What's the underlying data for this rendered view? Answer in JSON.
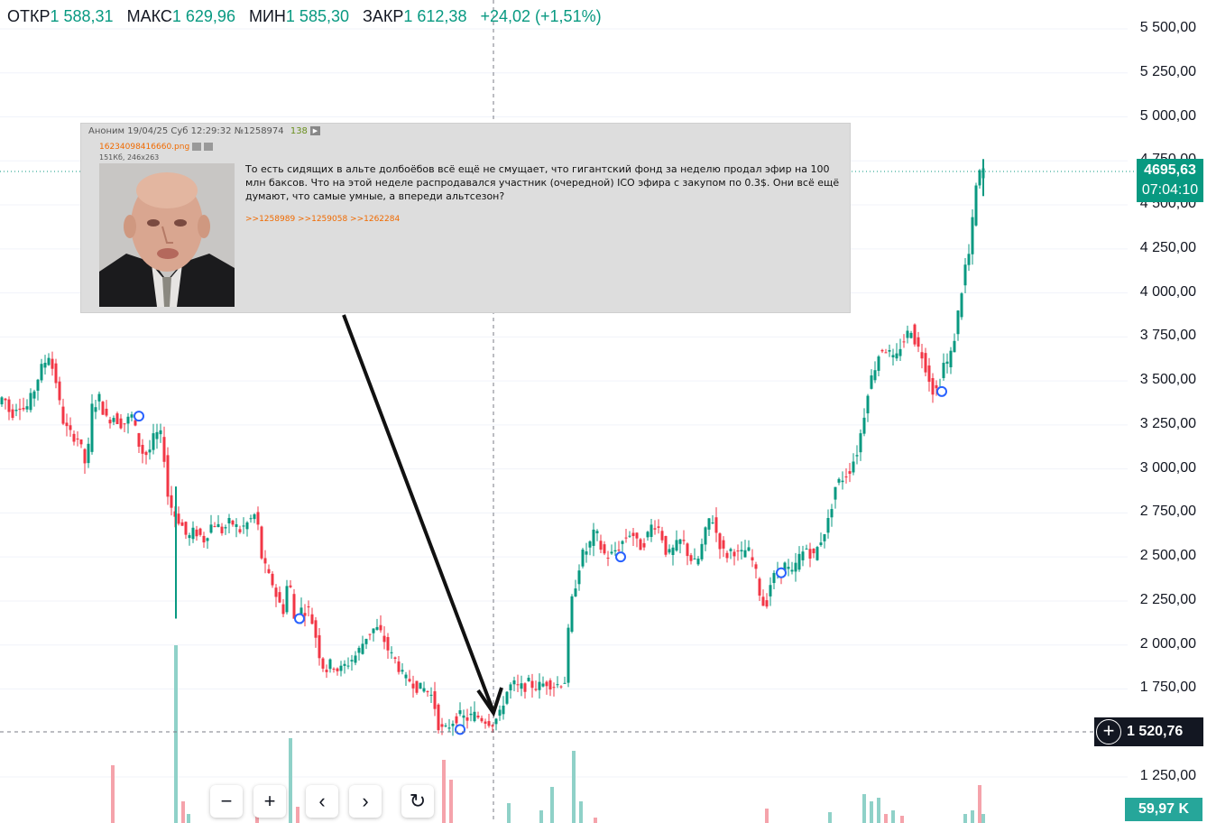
{
  "ohlc": {
    "open_label": "ОТКР",
    "open": "1 588,31",
    "high_label": "МАКС",
    "high": "1 629,96",
    "low_label": "МИН",
    "low": "1 585,30",
    "close_label": "ЗАКР",
    "close": "1 612,38",
    "change": "+24,02 (+1,51%)"
  },
  "price_axis": [
    "5 500,00",
    "5 250,00",
    "5 000,00",
    "4 750,00",
    "4 500,00",
    "4 250,00",
    "4 000,00",
    "3 750,00",
    "3 500,00",
    "3 250,00",
    "3 000,00",
    "2 750,00",
    "2 500,00",
    "2 250,00",
    "2 000,00",
    "1 750,00",
    "1 250,00"
  ],
  "last_price": {
    "value": "4695,63",
    "countdown": "07:04:10"
  },
  "crosshair_price": "1 520,76",
  "volume_label": "59,97 K",
  "colors": {
    "up": "#089981",
    "down": "#f23645",
    "vol_up": "#8fd1c8",
    "vol_down": "#f5a3ab",
    "crosshair": "#131722"
  },
  "post": {
    "author": "Аноним",
    "datetime": "19/04/25 Суб 12:29:32",
    "number": "№1258974",
    "count": "138",
    "file_name": "16234098416660.png",
    "file_meta": "151Кб, 246x263",
    "text": "То есть сидящих в альте долбоёбов всё ещё не смущает, что гигантский фонд за неделю продал эфир на 100 млн баксов. Что на этой неделе распродавался участник (очередной) ICO эфира с закупом по 0.3$. Они всё ещё думают, что самые умные, а впереди альтсезон?",
    "replies": ">>1258989 >>1259058 >>1262284"
  },
  "toolbar": {
    "zoom_out": "−",
    "zoom_in": "+",
    "prev": "‹",
    "next": "›",
    "reset": "↻"
  },
  "icons": [
    "crosshair-plus-icon",
    "play-icon",
    "search-icon",
    "download-icon",
    "reset-icon"
  ],
  "chart_data": {
    "type": "candlestick",
    "ylim": [
      1100,
      5600
    ],
    "y_ticks": [
      1250,
      1750,
      2000,
      2250,
      2500,
      2750,
      3000,
      3250,
      3500,
      3750,
      4000,
      4250,
      4500,
      4750,
      5000,
      5250,
      5500
    ],
    "last_price": 4695.63,
    "crosshair_price": 1520.76,
    "anchors": [
      [
        0,
        3350
      ],
      [
        8,
        3420
      ],
      [
        16,
        3300
      ],
      [
        24,
        3380
      ],
      [
        32,
        3330
      ],
      [
        40,
        3420
      ],
      [
        48,
        3550
      ],
      [
        58,
        3650
      ],
      [
        66,
        3500
      ],
      [
        72,
        3300
      ],
      [
        80,
        3200
      ],
      [
        90,
        3180
      ],
      [
        100,
        3000
      ],
      [
        106,
        3350
      ],
      [
        114,
        3400
      ],
      [
        122,
        3280
      ],
      [
        130,
        3300
      ],
      [
        140,
        3250
      ],
      [
        150,
        3300
      ],
      [
        160,
        3100
      ],
      [
        168,
        3080
      ],
      [
        176,
        3200
      ],
      [
        184,
        3180
      ],
      [
        190,
        2850
      ],
      [
        196,
        2750
      ],
      [
        204,
        2700
      ],
      [
        212,
        2600
      ],
      [
        220,
        2650
      ],
      [
        230,
        2600
      ],
      [
        240,
        2700
      ],
      [
        250,
        2650
      ],
      [
        260,
        2700
      ],
      [
        270,
        2650
      ],
      [
        280,
        2700
      ],
      [
        288,
        2750
      ],
      [
        294,
        2500
      ],
      [
        300,
        2400
      ],
      [
        306,
        2350
      ],
      [
        312,
        2250
      ],
      [
        318,
        2200
      ],
      [
        324,
        2400
      ],
      [
        330,
        2150
      ],
      [
        338,
        2200
      ],
      [
        346,
        2200
      ],
      [
        352,
        2100
      ],
      [
        358,
        1950
      ],
      [
        364,
        1850
      ],
      [
        372,
        1900
      ],
      [
        380,
        1850
      ],
      [
        390,
        1900
      ],
      [
        400,
        1950
      ],
      [
        410,
        2050
      ],
      [
        420,
        2100
      ],
      [
        428,
        2050
      ],
      [
        436,
        1950
      ],
      [
        444,
        1900
      ],
      [
        452,
        1800
      ],
      [
        460,
        1800
      ],
      [
        468,
        1750
      ],
      [
        476,
        1750
      ],
      [
        484,
        1700
      ],
      [
        490,
        1550
      ],
      [
        496,
        1500
      ],
      [
        504,
        1560
      ],
      [
        512,
        1600
      ],
      [
        520,
        1580
      ],
      [
        530,
        1600
      ],
      [
        540,
        1580
      ],
      [
        550,
        1560
      ],
      [
        558,
        1600
      ],
      [
        564,
        1720
      ],
      [
        572,
        1780
      ],
      [
        580,
        1750
      ],
      [
        590,
        1780
      ],
      [
        600,
        1760
      ],
      [
        610,
        1790
      ],
      [
        620,
        1770
      ],
      [
        630,
        1800
      ],
      [
        636,
        2200
      ],
      [
        642,
        2350
      ],
      [
        648,
        2500
      ],
      [
        656,
        2550
      ],
      [
        664,
        2650
      ],
      [
        672,
        2520
      ],
      [
        680,
        2500
      ],
      [
        688,
        2550
      ],
      [
        696,
        2600
      ],
      [
        704,
        2650
      ],
      [
        712,
        2550
      ],
      [
        720,
        2600
      ],
      [
        728,
        2700
      ],
      [
        736,
        2650
      ],
      [
        744,
        2500
      ],
      [
        752,
        2550
      ],
      [
        760,
        2600
      ],
      [
        768,
        2500
      ],
      [
        776,
        2450
      ],
      [
        784,
        2600
      ],
      [
        792,
        2750
      ],
      [
        800,
        2600
      ],
      [
        808,
        2500
      ],
      [
        816,
        2550
      ],
      [
        824,
        2500
      ],
      [
        832,
        2550
      ],
      [
        840,
        2450
      ],
      [
        846,
        2300
      ],
      [
        852,
        2200
      ],
      [
        858,
        2350
      ],
      [
        866,
        2420
      ],
      [
        874,
        2450
      ],
      [
        882,
        2400
      ],
      [
        890,
        2500
      ],
      [
        898,
        2550
      ],
      [
        906,
        2500
      ],
      [
        914,
        2600
      ],
      [
        922,
        2700
      ],
      [
        930,
        2900
      ],
      [
        938,
        2950
      ],
      [
        946,
        3000
      ],
      [
        954,
        3100
      ],
      [
        960,
        3250
      ],
      [
        966,
        3450
      ],
      [
        972,
        3550
      ],
      [
        978,
        3650
      ],
      [
        984,
        3700
      ],
      [
        990,
        3650
      ],
      [
        996,
        3600
      ],
      [
        1002,
        3700
      ],
      [
        1008,
        3750
      ],
      [
        1014,
        3800
      ],
      [
        1020,
        3700
      ],
      [
        1026,
        3650
      ],
      [
        1032,
        3550
      ],
      [
        1038,
        3450
      ],
      [
        1044,
        3450
      ],
      [
        1050,
        3600
      ],
      [
        1056,
        3600
      ],
      [
        1062,
        3750
      ],
      [
        1068,
        3950
      ],
      [
        1074,
        4150
      ],
      [
        1080,
        4250
      ],
      [
        1084,
        4550
      ],
      [
        1088,
        4650
      ],
      [
        1092,
        4700
      ]
    ],
    "volume_bars": [
      {
        "x": 125,
        "h": 64,
        "up": false
      },
      {
        "x": 195,
        "h": 197,
        "up": true
      },
      {
        "x": 203,
        "h": 24,
        "up": false
      },
      {
        "x": 209,
        "h": 10,
        "up": true
      },
      {
        "x": 285,
        "h": 18,
        "up": false
      },
      {
        "x": 322,
        "h": 94,
        "up": true
      },
      {
        "x": 330,
        "h": 18,
        "up": false
      },
      {
        "x": 492,
        "h": 70,
        "up": false
      },
      {
        "x": 500,
        "h": 48,
        "up": false
      },
      {
        "x": 564,
        "h": 22,
        "up": true
      },
      {
        "x": 600,
        "h": 14,
        "up": true
      },
      {
        "x": 612,
        "h": 40,
        "up": true
      },
      {
        "x": 636,
        "h": 80,
        "up": true
      },
      {
        "x": 644,
        "h": 24,
        "up": true
      },
      {
        "x": 660,
        "h": 6,
        "up": false
      },
      {
        "x": 850,
        "h": 16,
        "up": false
      },
      {
        "x": 920,
        "h": 12,
        "up": true
      },
      {
        "x": 958,
        "h": 32,
        "up": true
      },
      {
        "x": 966,
        "h": 24,
        "up": true
      },
      {
        "x": 974,
        "h": 28,
        "up": true
      },
      {
        "x": 982,
        "h": 10,
        "up": false
      },
      {
        "x": 990,
        "h": 14,
        "up": true
      },
      {
        "x": 1000,
        "h": 8,
        "up": false
      },
      {
        "x": 1070,
        "h": 10,
        "up": true
      },
      {
        "x": 1078,
        "h": 14,
        "up": true
      },
      {
        "x": 1086,
        "h": 42,
        "up": false
      },
      {
        "x": 1090,
        "h": 10,
        "up": true
      }
    ],
    "markers": [
      {
        "x": 154,
        "price": 3300
      },
      {
        "x": 332,
        "price": 2150
      },
      {
        "x": 510,
        "price": 1520
      },
      {
        "x": 688,
        "price": 2500
      },
      {
        "x": 866,
        "price": 2410
      },
      {
        "x": 1044,
        "price": 3440
      }
    ]
  }
}
